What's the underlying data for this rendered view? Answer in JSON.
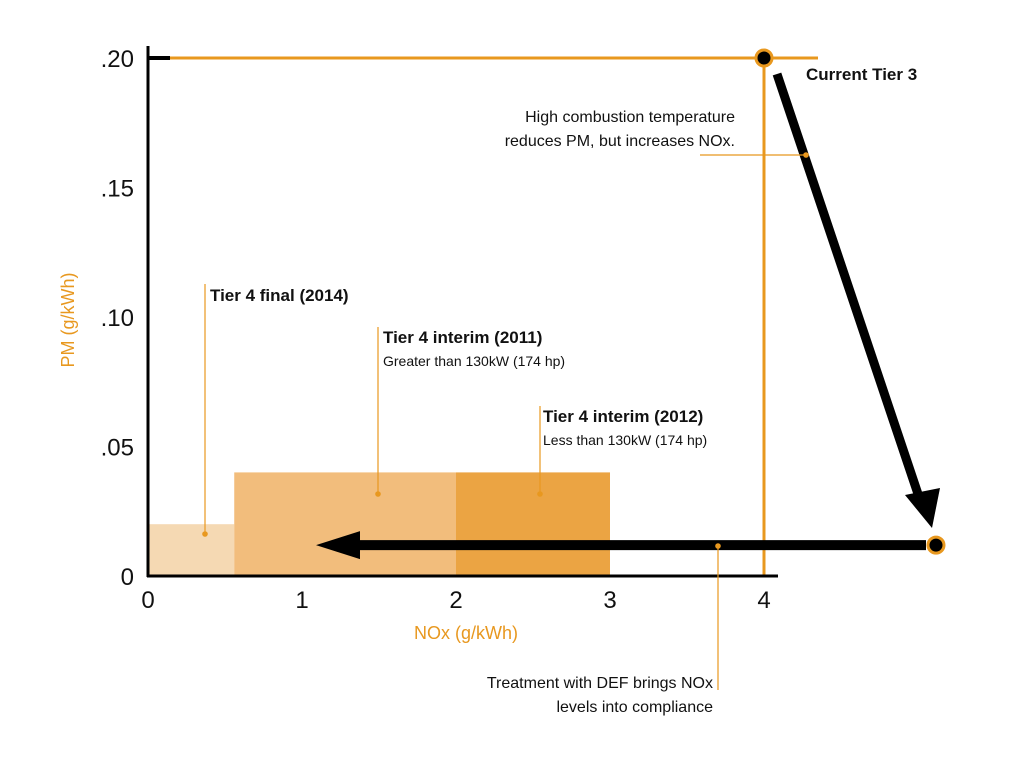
{
  "chart_data": {
    "type": "area",
    "xlabel": "NOx (g/kWh)",
    "ylabel": "PM (g/kWh)",
    "xlim": [
      0,
      4
    ],
    "ylim": [
      0,
      0.2
    ],
    "x_ticks": [
      "0",
      "1",
      "2",
      "3",
      "4"
    ],
    "y_ticks": [
      "0",
      ".05",
      ".10",
      ".15",
      ".20"
    ],
    "grid": false,
    "colors": {
      "accent": "#e8981f",
      "tier4_final": "#f5d9b3",
      "tier4_interim_2011": "#f2bd7c",
      "tier4_interim_2012": "#eba443",
      "arrow": "#000000"
    },
    "regions": [
      {
        "label": "Tier 4 final (2014)",
        "sublabel": "",
        "x0": 0,
        "x1": 0.56,
        "y": 0.02
      },
      {
        "label": "Tier 4 interim (2011)",
        "sublabel": "Greater than 130kW (174 hp)",
        "x0": 0.56,
        "x1": 2.0,
        "y": 0.04
      },
      {
        "label": "Tier 4 interim (2012)",
        "sublabel": "Less than 130kW (174 hp)",
        "x0": 2.0,
        "x1": 3.0,
        "y": 0.04
      }
    ],
    "current_tier": {
      "label": "Current Tier 3",
      "x": 4.0,
      "y": 0.2
    },
    "intermediate_point": {
      "x": 5.1,
      "y": 0.01
    },
    "annotations": {
      "combustion": [
        "High combustion temperature",
        "reduces PM, but increases NOx."
      ],
      "def": [
        "Treatment with DEF brings NOx",
        "levels into compliance"
      ]
    }
  }
}
